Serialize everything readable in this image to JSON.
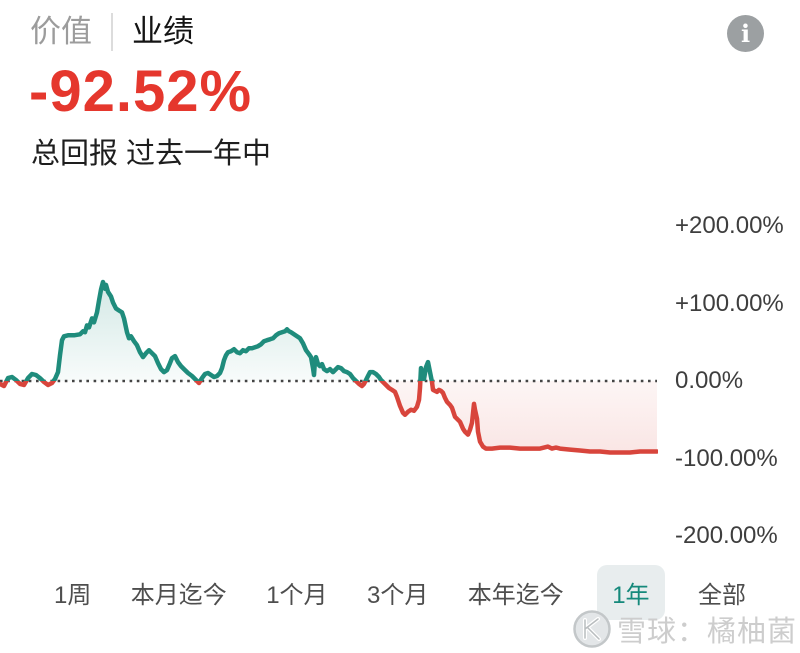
{
  "header": {
    "tabs": [
      {
        "label": "价值"
      },
      {
        "label": "业绩"
      }
    ],
    "big_value": "-92.52%",
    "subtitle": "总回报 过去一年中",
    "info_glyph": "i",
    "value_color": "#e5372d"
  },
  "chart_data": {
    "type": "line",
    "title": "总回报 过去一年中",
    "unit": "percent",
    "final_value_pct": -92.52,
    "ylim": [
      -250,
      250
    ],
    "grid": "zero-dotted-line-only",
    "legend": "none",
    "yticks": [
      {
        "label": "+200.00%",
        "pct": 200
      },
      {
        "label": "+100.00%",
        "pct": 100
      },
      {
        "label": "0.00%",
        "pct": 0
      },
      {
        "label": "-100.00%",
        "pct": -100
      },
      {
        "label": "-200.00%",
        "pct": -200
      }
    ],
    "colors": {
      "positive_line": "#1f8c7c",
      "negative_line": "#d8453c",
      "positive_fill": "rgba(31,140,124,0.16)",
      "negative_fill": "rgba(216,69,60,0.13)",
      "zero_line": "#444444"
    },
    "series": [
      {
        "name": "总回报",
        "points_x_pct": [
          [
            0,
            -3.8
          ],
          [
            4,
            -6.4
          ],
          [
            8,
            3.8
          ],
          [
            12,
            5.1
          ],
          [
            16,
            1.3
          ],
          [
            20,
            -3.8
          ],
          [
            24,
            -5.1
          ],
          [
            28,
            3.8
          ],
          [
            32,
            9
          ],
          [
            36,
            7.7
          ],
          [
            40,
            3.8
          ],
          [
            44,
            -1.3
          ],
          [
            48,
            -5.1
          ],
          [
            52,
            -2.6
          ],
          [
            55,
            2.6
          ],
          [
            58,
            11.5
          ],
          [
            60,
            33.3
          ],
          [
            62,
            52.6
          ],
          [
            64,
            57.7
          ],
          [
            68,
            59
          ],
          [
            74,
            59
          ],
          [
            80,
            60.3
          ],
          [
            83,
            64.1
          ],
          [
            85,
            62.8
          ],
          [
            87,
            71.8
          ],
          [
            89,
            69.2
          ],
          [
            92,
            80.8
          ],
          [
            94,
            75.6
          ],
          [
            97,
            88.5
          ],
          [
            99,
            103.8
          ],
          [
            101,
            118
          ],
          [
            103,
            127.7
          ],
          [
            105,
            119
          ],
          [
            106,
            124
          ],
          [
            108,
            115
          ],
          [
            111,
            109
          ],
          [
            113,
            101.3
          ],
          [
            116,
            93.6
          ],
          [
            119,
            91
          ],
          [
            122,
            88.5
          ],
          [
            124,
            80.8
          ],
          [
            127,
            62.8
          ],
          [
            129,
            55.1
          ],
          [
            131,
            57.7
          ],
          [
            134,
            51.3
          ],
          [
            137,
            46.2
          ],
          [
            140,
            37.2
          ],
          [
            143,
            30.8
          ],
          [
            146,
            35.9
          ],
          [
            149,
            39.7
          ],
          [
            152,
            35.9
          ],
          [
            155,
            32.1
          ],
          [
            158,
            23.1
          ],
          [
            161,
            15.4
          ],
          [
            164,
            11.5
          ],
          [
            167,
            14.1
          ],
          [
            170,
            23.1
          ],
          [
            172,
            29.5
          ],
          [
            175,
            32.1
          ],
          [
            178,
            24.4
          ],
          [
            181,
            19.2
          ],
          [
            184,
            15.4
          ],
          [
            188,
            10.3
          ],
          [
            192,
            6.4
          ],
          [
            196,
            1.3
          ],
          [
            199,
            -2.6
          ],
          [
            202,
            3.8
          ],
          [
            205,
            9
          ],
          [
            208,
            10.3
          ],
          [
            211,
            7.7
          ],
          [
            214,
            5.1
          ],
          [
            217,
            6.4
          ],
          [
            220,
            10.3
          ],
          [
            222,
            16.7
          ],
          [
            224,
            26.9
          ],
          [
            226,
            33.3
          ],
          [
            228,
            37.2
          ],
          [
            231,
            38.5
          ],
          [
            234,
            41
          ],
          [
            237,
            37.2
          ],
          [
            240,
            35.9
          ],
          [
            243,
            39.7
          ],
          [
            246,
            38.5
          ],
          [
            249,
            42.3
          ],
          [
            252,
            42.3
          ],
          [
            255,
            43.6
          ],
          [
            258,
            44.9
          ],
          [
            261,
            47.4
          ],
          [
            264,
            51.3
          ],
          [
            267,
            52.6
          ],
          [
            270,
            53.8
          ],
          [
            273,
            55.1
          ],
          [
            276,
            59
          ],
          [
            279,
            61.5
          ],
          [
            282,
            62.8
          ],
          [
            285,
            64.1
          ],
          [
            287,
            66.7
          ],
          [
            289,
            64.1
          ],
          [
            291,
            62.8
          ],
          [
            294,
            60.3
          ],
          [
            297,
            57.7
          ],
          [
            300,
            55.1
          ],
          [
            303,
            48.7
          ],
          [
            306,
            39.7
          ],
          [
            309,
            34.6
          ],
          [
            311,
            30.8
          ],
          [
            313,
            16.7
          ],
          [
            314,
            7.7
          ],
          [
            315,
            26.9
          ],
          [
            316,
            30.8
          ],
          [
            318,
            21.8
          ],
          [
            320,
            19.2
          ],
          [
            322,
            21.8
          ],
          [
            324,
            15.4
          ],
          [
            327,
            12.8
          ],
          [
            330,
            15.4
          ],
          [
            333,
            11.5
          ],
          [
            336,
            15.4
          ],
          [
            338,
            17.9
          ],
          [
            341,
            16.7
          ],
          [
            344,
            12.8
          ],
          [
            347,
            11.5
          ],
          [
            350,
            9
          ],
          [
            353,
            3.8
          ],
          [
            356,
            0
          ],
          [
            359,
            -3.8
          ],
          [
            362,
            -6.4
          ],
          [
            364,
            -3.8
          ],
          [
            366,
            1.3
          ],
          [
            368,
            6.4
          ],
          [
            370,
            11.5
          ],
          [
            373,
            11.5
          ],
          [
            376,
            9
          ],
          [
            379,
            5.1
          ],
          [
            381,
            1.3
          ],
          [
            383,
            -1.3
          ],
          [
            386,
            -5.1
          ],
          [
            389,
            -9
          ],
          [
            392,
            -11.5
          ],
          [
            395,
            -14.1
          ],
          [
            397,
            -20.5
          ],
          [
            400,
            -32.1
          ],
          [
            403,
            -41
          ],
          [
            405,
            -43.6
          ],
          [
            408,
            -39.7
          ],
          [
            411,
            -37.2
          ],
          [
            414,
            -38.5
          ],
          [
            417,
            -33.3
          ],
          [
            419,
            -24.4
          ],
          [
            420,
            -9
          ],
          [
            421,
            16.7
          ],
          [
            423,
            6.4
          ],
          [
            424,
            2.6
          ],
          [
            426,
            17.9
          ],
          [
            428,
            24.4
          ],
          [
            430,
            11.5
          ],
          [
            432,
            -1.3
          ],
          [
            433,
            -11.5
          ],
          [
            435,
            -12.8
          ],
          [
            437,
            -14.1
          ],
          [
            439,
            -11.5
          ],
          [
            441,
            -12.8
          ],
          [
            443,
            -15.4
          ],
          [
            445,
            -21.8
          ],
          [
            447,
            -26.9
          ],
          [
            450,
            -30.8
          ],
          [
            452,
            -34.6
          ],
          [
            455,
            -46.2
          ],
          [
            458,
            -50
          ],
          [
            460,
            -52.6
          ],
          [
            463,
            -61.5
          ],
          [
            465,
            -65.4
          ],
          [
            468,
            -69.2
          ],
          [
            470,
            -62.8
          ],
          [
            472,
            -53.8
          ],
          [
            474,
            -29.5
          ],
          [
            475,
            -37.2
          ],
          [
            477,
            -48.7
          ],
          [
            478,
            -65.4
          ],
          [
            480,
            -78.2
          ],
          [
            483,
            -84.6
          ],
          [
            486,
            -87.2
          ],
          [
            492,
            -87.2
          ],
          [
            500,
            -85.9
          ],
          [
            510,
            -85.9
          ],
          [
            520,
            -87.2
          ],
          [
            530,
            -87.2
          ],
          [
            540,
            -87.2
          ],
          [
            548,
            -84.6
          ],
          [
            552,
            -87.2
          ],
          [
            556,
            -85.9
          ],
          [
            560,
            -87.2
          ],
          [
            570,
            -88.5
          ],
          [
            580,
            -89.7
          ],
          [
            590,
            -91
          ],
          [
            600,
            -91
          ],
          [
            610,
            -92.3
          ],
          [
            620,
            -92.3
          ],
          [
            630,
            -92.3
          ],
          [
            640,
            -91
          ],
          [
            648,
            -91
          ],
          [
            657,
            -91
          ]
        ]
      }
    ]
  },
  "range_tabs": {
    "items": [
      "1周",
      "本月迄今",
      "1个月",
      "3个月",
      "本年迄今",
      "1年",
      "全部"
    ],
    "active": "1年"
  },
  "watermark": {
    "logo": "xueqiu-logo",
    "text": "雪球：橘柚菌"
  }
}
